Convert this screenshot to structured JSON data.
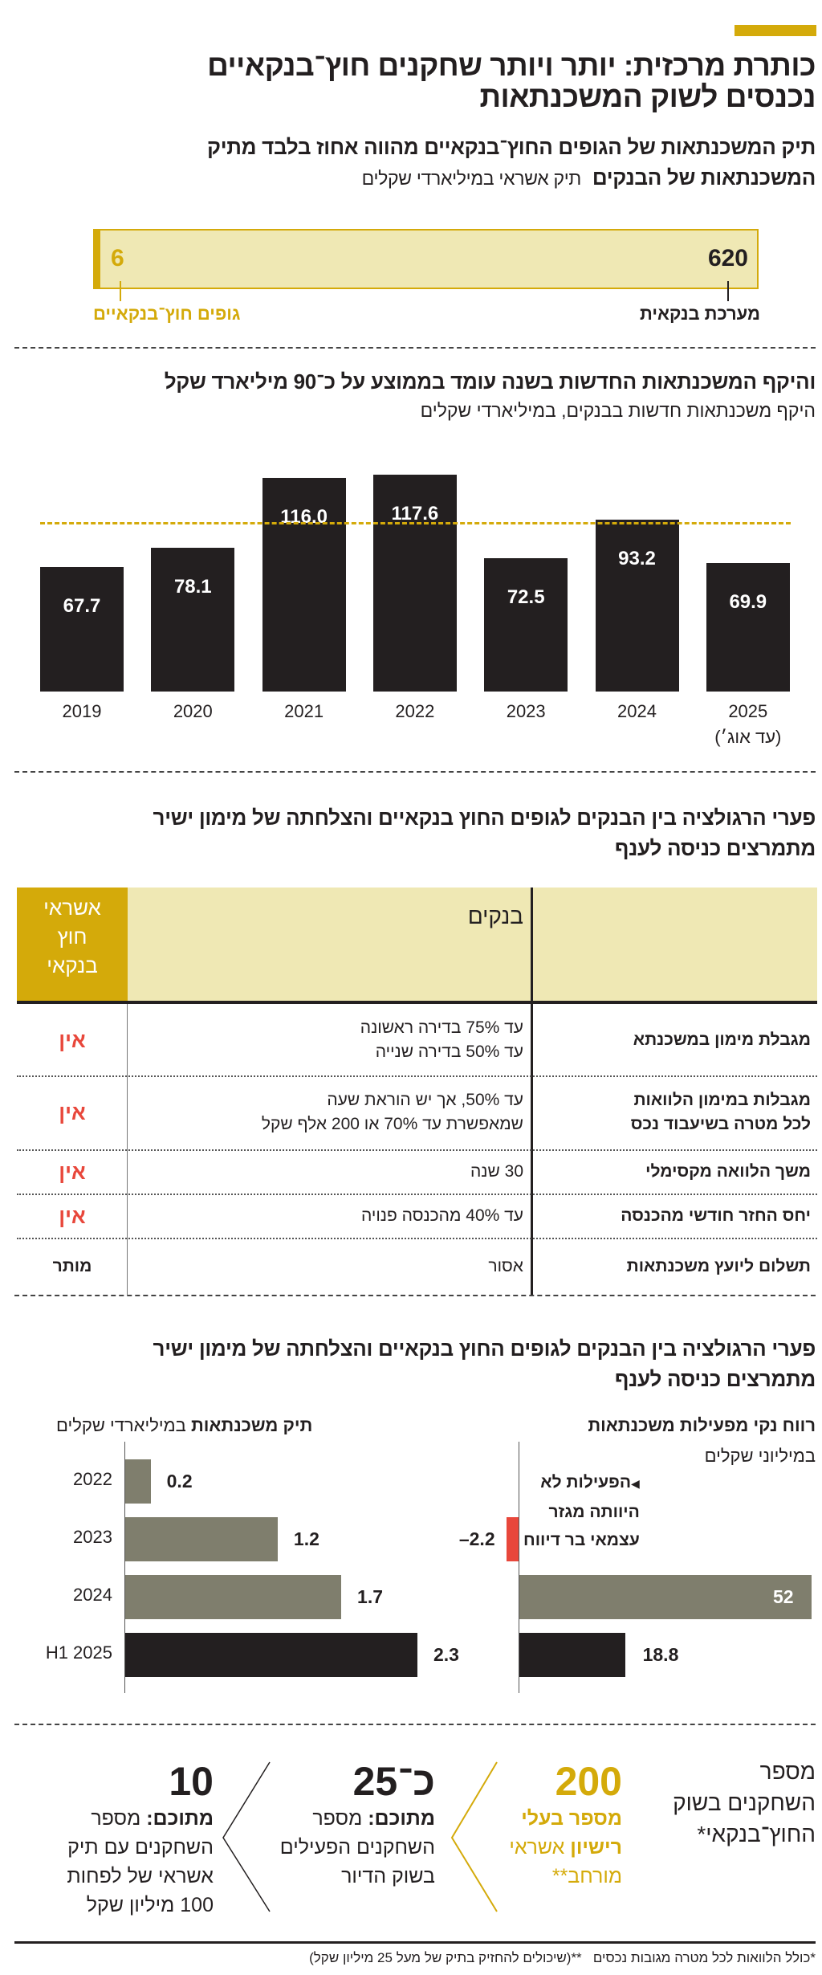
{
  "colors": {
    "gold": "#d4aa0a",
    "light_yellow": "#efe8b4",
    "black": "#231f20",
    "gray": "#7f7e6d",
    "red": "#e8473b"
  },
  "header": {
    "title_lines": [
      "כותרת מרכזית: יותר ויותר שחקנים חוץ־בנקאיים",
      "נכנסים לשוק המשכנתאות"
    ]
  },
  "section1": {
    "title_line1": "תיק המשכנתאות של הגופים החוץ־בנקאיים מהווה אחוז בלבד מתיק",
    "title_line2": "המשכנתאות של הבנקים",
    "unit": "תיק אשראי במיליארדי שקלים",
    "bank_value": "620",
    "bank_label": "מערכת בנקאית",
    "nonbank_value": "6",
    "nonbank_label": "גופים חוץ־בנקאיים"
  },
  "section2": {
    "title": "והיקף המשכנתאות החדשות בשנה עומד בממוצע על כ־90 מיליארד שקל",
    "subtitle": "היקף משכנתאות חדשות בבנקים, במיליארדי שקלים"
  },
  "section3": {
    "title_lines": [
      "פערי הרגולציה בין הבנקים לגופים החוץ בנקאיים והצלחתה של מימון ישיר",
      "מתמרצים כניסה לענף"
    ],
    "headers": {
      "banks": "בנקים",
      "nonbank_lines": [
        "אשראי",
        "חוץ",
        "בנקאי"
      ]
    },
    "rows": [
      {
        "label": [
          "מגבלת מימון במשכנתא"
        ],
        "banks": [
          "עד 75% בדירה ראשונה",
          "עד 50% בדירה שנייה"
        ],
        "nonbank": "אין"
      },
      {
        "label": [
          "מגבלות במימון הלוואות",
          "לכל מטרה בשיעבוד נכס"
        ],
        "banks": [
          "עד 50%, אך יש הוראת שעה",
          "שמאפשרת עד 70% או 200 אלף שקל"
        ],
        "nonbank": "אין"
      },
      {
        "label": [
          "משך הלוואה מקסימלי"
        ],
        "banks": [
          "30 שנה"
        ],
        "nonbank": "אין"
      },
      {
        "label": [
          "יחס החזר חודשי מהכנסה"
        ],
        "banks": [
          "עד 40% מהכנסה פנויה"
        ],
        "nonbank": "אין"
      },
      {
        "label": [
          "תשלום ליועץ משכנתאות"
        ],
        "banks": [
          "אסור"
        ],
        "nonbank": "מותר"
      }
    ]
  },
  "section4": {
    "title_lines": [
      "פערי הרגולציה בין הבנקים לגופים החוץ בנקאיים והצלחתה של מימון ישיר",
      "מתמרצים כניסה לענף"
    ],
    "left_title_bold": "תיק משכנתאות",
    "left_title_unit": "במיליארדי שקלים",
    "right_title": "רווח נקי מפעילות משכנתאות",
    "right_unit": "במיליוני שקלים",
    "annotation_lines": [
      "הפעילות לא",
      "היוותה מגזר",
      "עצמאי בר דיווח"
    ]
  },
  "section5": {
    "label_lines": [
      "מספר",
      "השחקנים בשוק",
      "החוץ־בנקאי*"
    ],
    "items": [
      {
        "number": "200",
        "lines_bold": [
          "מספר בעלי",
          "רישיון"
        ],
        "lines_rest": [
          " אשראי",
          "מורחב**"
        ]
      },
      {
        "number": "כ־25",
        "bold": "מתוכם:",
        "lines": [
          " מספר",
          "השחקנים הפעילים",
          "בשוק הדיור"
        ]
      },
      {
        "number": "10",
        "bold": "מתוכם:",
        "lines": [
          " מספר",
          "השחקנים עם תיק",
          "אשראי של לפחות",
          "100 מיליון שקל"
        ]
      }
    ]
  },
  "footnote": {
    "a": "*כולל הלוואות לכל מטרה מגובות נכסים",
    "b": "**(שיכולים להחזיק בתיק של מעל 25 מיליון שקל)"
  },
  "chart_data": [
    {
      "type": "bar",
      "title": "היקף משכנתאות חדשות בבנקים, במיליארדי שקלים",
      "categories": [
        "2019",
        "2020",
        "2021",
        "2022",
        "2023",
        "2024",
        "2025"
      ],
      "category_notes": {
        "2025": "(עד אוג׳)"
      },
      "values": [
        67.7,
        78.1,
        116.0,
        117.6,
        72.5,
        93.2,
        69.9
      ],
      "value_labels": [
        "67.7",
        "78.1",
        "116.0",
        "117.6",
        "72.5",
        "93.2",
        "69.9"
      ],
      "reference_line": {
        "value": 92,
        "style": "dashed",
        "color": "#d4aa0a"
      },
      "ylim": [
        0,
        117.6
      ],
      "grid": false
    },
    {
      "type": "bar",
      "orientation": "horizontal",
      "title": "תיק משכנתאות במיליארדי שקלים",
      "categories": [
        "2022",
        "2023",
        "2024",
        "H1 2025"
      ],
      "values": [
        0.2,
        1.2,
        1.7,
        2.3
      ],
      "value_labels": [
        "0.2",
        "1.2",
        "1.7",
        "2.3"
      ],
      "bar_colors": [
        "#7f7e6d",
        "#7f7e6d",
        "#7f7e6d",
        "#231f20"
      ],
      "xlim": [
        0,
        2.3
      ]
    },
    {
      "type": "bar",
      "orientation": "horizontal",
      "title": "רווח נקי מפעילות משכנתאות במיליוני שקלים",
      "categories": [
        "2022",
        "2023",
        "2024",
        "H1 2025"
      ],
      "values": [
        null,
        -2.2,
        52,
        18.8
      ],
      "value_labels": [
        "",
        "–2.2",
        "52",
        "18.8"
      ],
      "bar_colors": [
        "#7f7e6d",
        "#e8473b",
        "#7f7e6d",
        "#231f20"
      ],
      "xlim": [
        -2.2,
        52
      ]
    }
  ]
}
